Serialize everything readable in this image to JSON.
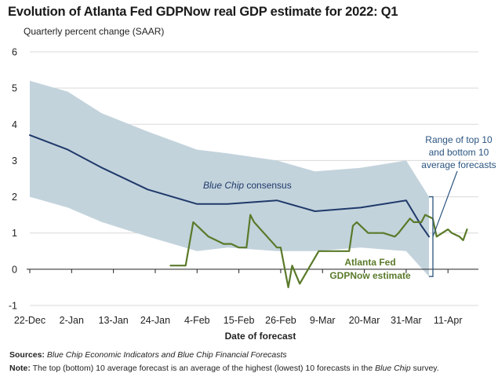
{
  "title": "Evolution of Atlanta Fed GDPNow real GDP estimate for 2022: Q1",
  "subtitle": "Quarterly percent change (SAAR)",
  "sources_label": "Sources:",
  "sources_text": "Blue Chip Economic Indicators and Blue Chip Financial Forecasts",
  "note_label": "Note:",
  "note_text_before": "The top (bottom) 10 average forecast is an average of the highest (lowest) 10 forecasts in the",
  "note_text_italic": "Blue Chip",
  "note_text_after": "survey.",
  "colors": {
    "range_band": "#c3d3dc",
    "consensus": "#1f3a6a",
    "gdpnow": "#5a7a2a",
    "range_anno": "#2b5580",
    "gridline": "#d9d9d9"
  },
  "chart_data": {
    "type": "line",
    "xlabel": "Date of forecast",
    "ylabel": "",
    "ylim": [
      -1,
      6
    ],
    "yticks": [
      -1,
      0,
      1,
      2,
      3,
      4,
      5,
      6
    ],
    "xlim": [
      "2021-12-22",
      "2022-04-19"
    ],
    "xticks": [
      {
        "date": "2021-12-22",
        "label": "22-Dec"
      },
      {
        "date": "2022-01-02",
        "label": "2-Jan"
      },
      {
        "date": "2022-01-13",
        "label": "13-Jan"
      },
      {
        "date": "2022-01-24",
        "label": "24-Jan"
      },
      {
        "date": "2022-02-04",
        "label": "4-Feb"
      },
      {
        "date": "2022-02-15",
        "label": "15-Feb"
      },
      {
        "date": "2022-02-26",
        "label": "26-Feb"
      },
      {
        "date": "2022-03-09",
        "label": "9-Mar"
      },
      {
        "date": "2022-03-20",
        "label": "20-Mar"
      },
      {
        "date": "2022-03-31",
        "label": "31-Mar"
      },
      {
        "date": "2022-04-11",
        "label": "11-Apr"
      }
    ],
    "grid": "horizontal",
    "range_band": {
      "dates": [
        "2021-12-22",
        "2022-01-01",
        "2022-01-10",
        "2022-01-22",
        "2022-02-04",
        "2022-02-12",
        "2022-02-25",
        "2022-03-07",
        "2022-03-19",
        "2022-03-31",
        "2022-04-06"
      ],
      "top": [
        5.2,
        4.9,
        4.3,
        3.8,
        3.3,
        3.2,
        3.0,
        2.7,
        2.8,
        3.0,
        2.0
      ],
      "bottom": [
        2.0,
        1.7,
        1.3,
        0.9,
        0.5,
        0.6,
        0.5,
        0.5,
        0.6,
        0.5,
        -0.2
      ]
    },
    "series": [
      {
        "key": "consensus",
        "name": "Blue Chip consensus",
        "annotation_italic": "Blue Chip",
        "annotation_rest": "consensus",
        "dates": [
          "2021-12-22",
          "2022-01-01",
          "2022-01-10",
          "2022-01-22",
          "2022-02-04",
          "2022-02-12",
          "2022-02-25",
          "2022-03-07",
          "2022-03-19",
          "2022-03-31",
          "2022-04-04",
          "2022-04-06"
        ],
        "values": [
          3.7,
          3.3,
          2.8,
          2.2,
          1.8,
          1.8,
          1.9,
          1.6,
          1.7,
          1.9,
          1.2,
          0.9
        ]
      },
      {
        "key": "gdpnow",
        "name": "Atlanta Fed GDPNow estimate",
        "annotation_line1": "Atlanta Fed",
        "annotation_line2": "GDPNow estimate",
        "dates": [
          "2022-01-28",
          "2022-02-01",
          "2022-02-01",
          "2022-02-03",
          "2022-02-04",
          "2022-02-07",
          "2022-02-09",
          "2022-02-11",
          "2022-02-13",
          "2022-02-15",
          "2022-02-16",
          "2022-02-17",
          "2022-02-18",
          "2022-02-19",
          "2022-02-25",
          "2022-02-26",
          "2022-02-28",
          "2022-03-01",
          "2022-03-03",
          "2022-03-08",
          "2022-03-09",
          "2022-03-10",
          "2022-03-11",
          "2022-03-16",
          "2022-03-17",
          "2022-03-18",
          "2022-03-21",
          "2022-03-22",
          "2022-03-24",
          "2022-03-25",
          "2022-03-28",
          "2022-03-29",
          "2022-04-01",
          "2022-04-02",
          "2022-04-04",
          "2022-04-05",
          "2022-04-07",
          "2022-04-08",
          "2022-04-11",
          "2022-04-12",
          "2022-04-14",
          "2022-04-15",
          "2022-04-16"
        ],
        "values": [
          0.1,
          0.1,
          0.1,
          1.3,
          1.2,
          0.9,
          0.8,
          0.7,
          0.7,
          0.6,
          0.6,
          0.6,
          1.5,
          1.3,
          0.6,
          0.6,
          -0.5,
          0.1,
          -0.4,
          0.5,
          0.5,
          0.5,
          0.5,
          0.5,
          1.2,
          1.3,
          1.0,
          1.0,
          1.0,
          1.0,
          0.9,
          1.0,
          1.4,
          1.3,
          1.3,
          1.5,
          1.4,
          0.9,
          1.1,
          1.0,
          0.9,
          0.8,
          1.1
        ]
      }
    ],
    "range_annotation": [
      "Range of top 10",
      "and bottom 10",
      "average forecasts"
    ]
  }
}
